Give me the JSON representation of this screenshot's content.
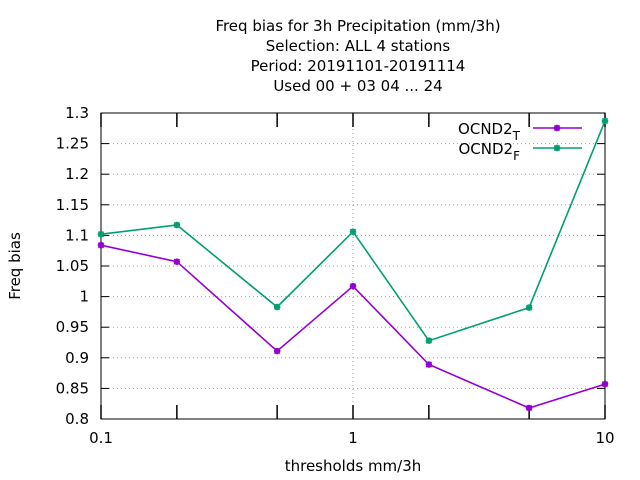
{
  "chart_data": {
    "type": "line",
    "title_lines": [
      "Freq bias  for 3h Precipitation (mm/3h)",
      "Selection: ALL      4 stations",
      "Period: 20191101-20191114",
      "Used  00 + 03 04 ... 24"
    ],
    "xlabel": "thresholds mm/3h",
    "ylabel": "Freq bias",
    "x_scale": "log",
    "xlim": [
      0.1,
      10
    ],
    "ylim": [
      0.8,
      1.3
    ],
    "x_ticks": [
      0.1,
      1,
      10
    ],
    "x_tick_labels": [
      "0.1",
      "1",
      "10"
    ],
    "x_minor_ticks": [
      0.2,
      0.5,
      2,
      5
    ],
    "y_ticks": [
      0.8,
      0.85,
      0.9,
      0.95,
      1,
      1.05,
      1.1,
      1.15,
      1.2,
      1.25,
      1.3
    ],
    "y_tick_labels": [
      "0.8",
      "0.85",
      "0.9",
      "0.95",
      "1",
      "1.05",
      "1.1",
      "1.15",
      "1.2",
      "1.25",
      "1.3"
    ],
    "grid": true,
    "legend_position": "top-right",
    "x": [
      0.1,
      0.2,
      0.5,
      1,
      2,
      5,
      10
    ],
    "series": [
      {
        "name": "OCND2",
        "sub": "T",
        "color": "#9400d3",
        "values": [
          1.084,
          1.057,
          0.911,
          1.017,
          0.889,
          0.818,
          0.857
        ]
      },
      {
        "name": "OCND2",
        "sub": "F",
        "color": "#009e73",
        "values": [
          1.102,
          1.117,
          0.983,
          1.106,
          0.928,
          0.982,
          1.287
        ]
      }
    ]
  }
}
